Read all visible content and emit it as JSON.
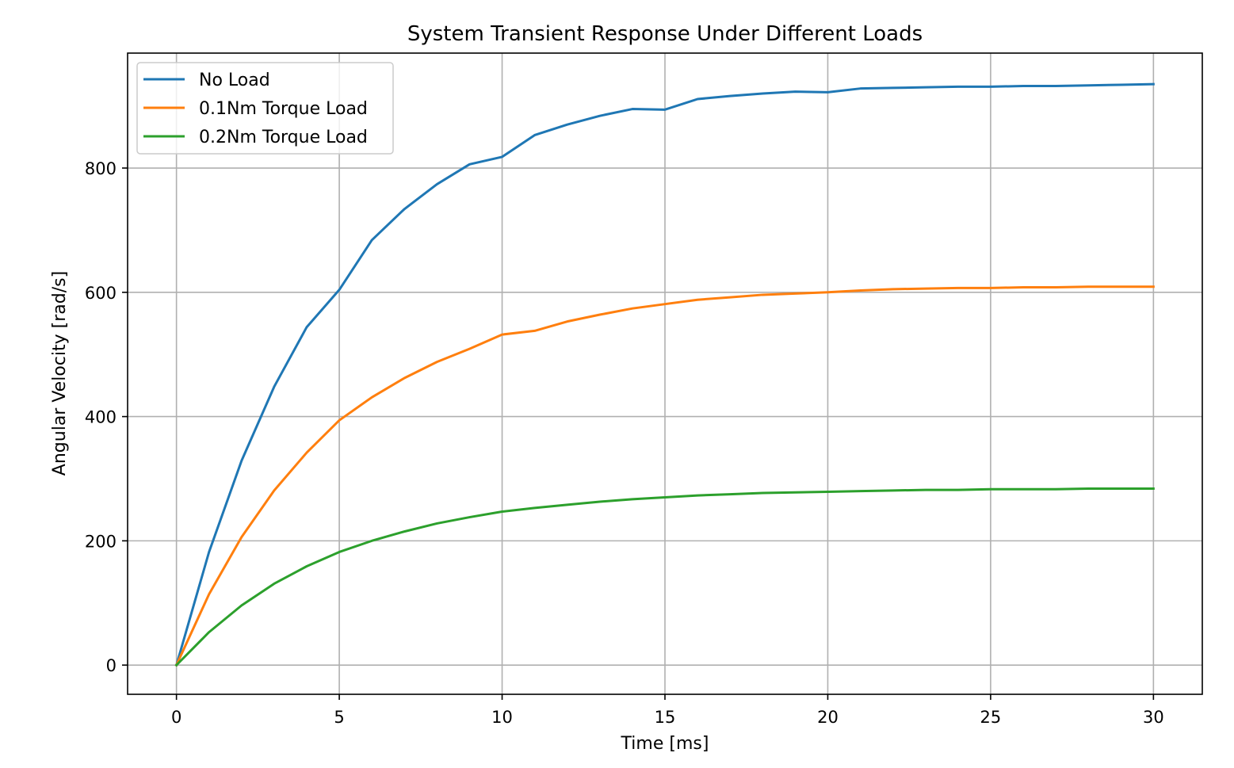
{
  "chart_data": {
    "type": "line",
    "title": "System Transient Response Under Different Loads",
    "xlabel": "Time [ms]",
    "ylabel": "Angular Velocity [rad/s]",
    "xlim": [
      -1.5,
      31.5
    ],
    "ylim": [
      -47,
      985
    ],
    "xticks": [
      0,
      5,
      10,
      15,
      20,
      25,
      30
    ],
    "yticks": [
      0,
      200,
      400,
      600,
      800
    ],
    "grid": true,
    "legend_position": "upper-left",
    "series": [
      {
        "name": "No Load",
        "color": "#1f77b4",
        "x": [
          0,
          1,
          2,
          3,
          4,
          5,
          6,
          7,
          8,
          9,
          10,
          11,
          12,
          13,
          14,
          15,
          16,
          17,
          18,
          19,
          20,
          21,
          22,
          23,
          24,
          25,
          26,
          27,
          28,
          29,
          30
        ],
        "y": [
          0,
          182,
          329,
          448,
          544,
          604,
          684,
          734,
          774,
          806,
          818,
          853,
          870,
          884,
          895,
          894,
          911,
          916,
          920,
          923,
          922,
          928,
          929,
          930,
          931,
          931,
          932,
          932,
          933,
          934,
          935
        ]
      },
      {
        "name": "0.1Nm Torque Load",
        "color": "#ff7f0e",
        "x": [
          0,
          1,
          2,
          3,
          4,
          5,
          6,
          7,
          8,
          9,
          10,
          11,
          12,
          13,
          14,
          15,
          16,
          17,
          18,
          19,
          20,
          21,
          22,
          23,
          24,
          25,
          26,
          27,
          28,
          29,
          30
        ],
        "y": [
          0,
          114,
          206,
          281,
          342,
          394,
          431,
          462,
          488,
          509,
          532,
          538,
          553,
          564,
          574,
          581,
          588,
          592,
          596,
          598,
          600,
          603,
          605,
          606,
          607,
          607,
          608,
          608,
          609,
          609,
          609
        ]
      },
      {
        "name": "0.2Nm Torque Load",
        "color": "#2ca02c",
        "x": [
          0,
          1,
          2,
          3,
          4,
          5,
          6,
          7,
          8,
          9,
          10,
          11,
          12,
          13,
          14,
          15,
          16,
          17,
          18,
          19,
          20,
          21,
          22,
          23,
          24,
          25,
          26,
          27,
          28,
          29,
          30
        ],
        "y": [
          0,
          53,
          96,
          131,
          159,
          182,
          200,
          215,
          228,
          238,
          247,
          253,
          258,
          263,
          267,
          270,
          273,
          275,
          277,
          278,
          279,
          280,
          281,
          282,
          282,
          283,
          283,
          283,
          284,
          284,
          284
        ]
      }
    ]
  }
}
